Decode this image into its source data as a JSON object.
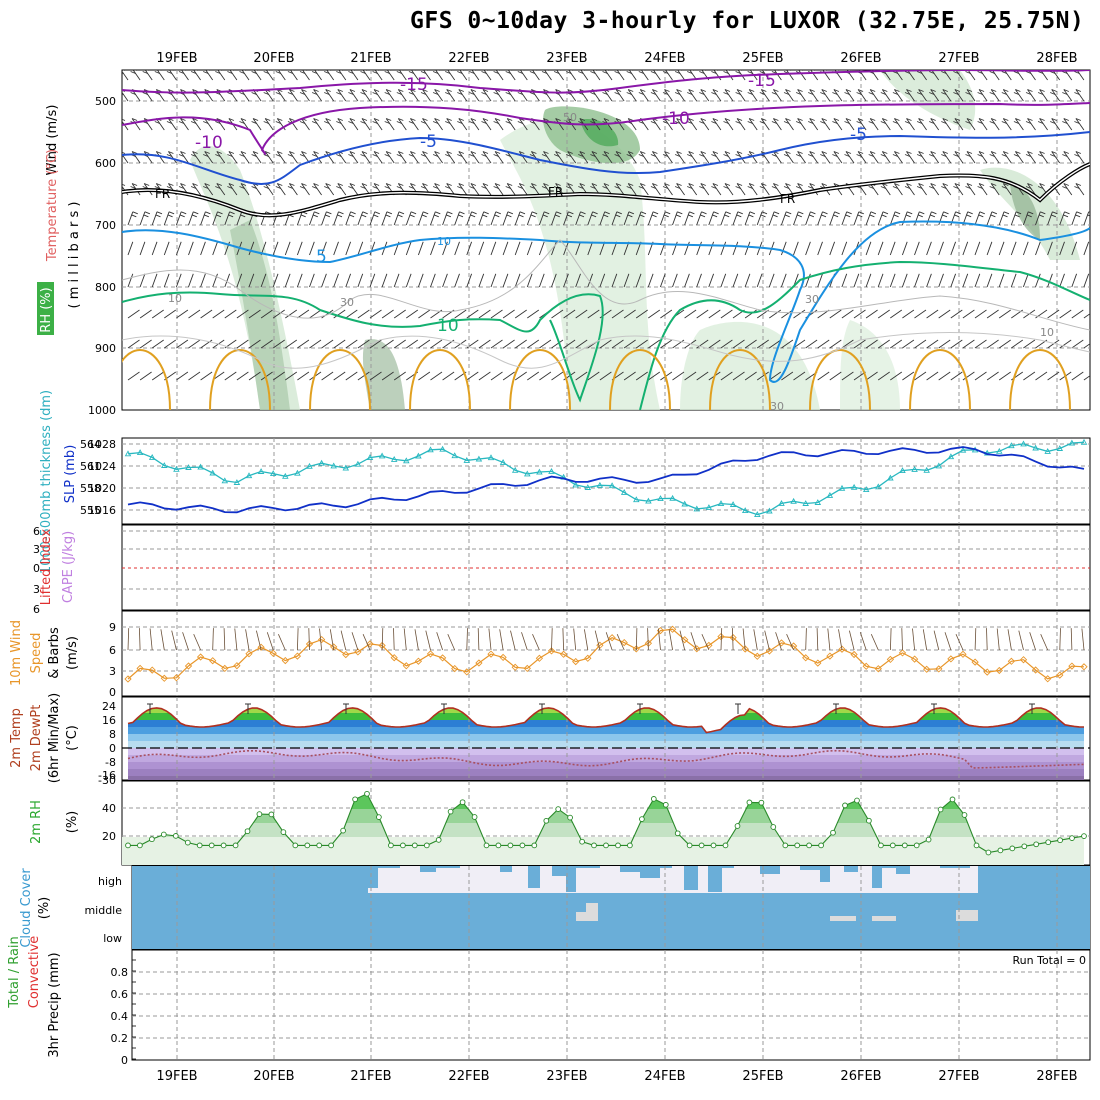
{
  "title": "GFS 0~10day 3-hourly for LUXOR (32.75E, 25.75N)",
  "dates": [
    "19FEB",
    "20FEB",
    "21FEB",
    "22FEB",
    "23FEB",
    "24FEB",
    "25FEB",
    "26FEB",
    "27FEB",
    "28FEB"
  ],
  "colors": {
    "purple": "#8a17a8",
    "blue": "#2050d0",
    "lightblue": "#1a90e0",
    "green": "#14b070",
    "orange": "#e0a020",
    "cyan": "#28b8c0",
    "slp": "#1030c8",
    "windorange": "#e8962a",
    "rhgreen": "#3cc040",
    "cloud": "#6aaed8",
    "red": "#e03030"
  },
  "panels": {
    "upper_air": {
      "ylabel_wind": "Wind (m/s)",
      "ylabel_temp": "Temperature (°C)",
      "ylabel_mb": "( m i l l i b a r s )",
      "rh_label": "RH (%)",
      "y_ticks": [
        "500",
        "600",
        "700",
        "800",
        "900",
        "1000"
      ],
      "contour_labels": {
        "m15a": "-15",
        "m15b": "-15",
        "m10a": "-10",
        "m10b": "-10",
        "m5a": "-5",
        "m5b": "-5",
        "fra": "FR",
        "frb": "FR",
        "frc": "FR",
        "p5": "5",
        "p10": "10",
        "p10b": "10",
        "rh50": "50",
        "rh30a": "30",
        "rh30b": "30",
        "rh10": "10",
        "rh10b": "10",
        "rh30c": "30"
      }
    },
    "thickness": {
      "label_thick": "1000-500mb thickness (dm)",
      "label_slp": "SLP (mb)",
      "left_ticks": [
        "564",
        "561",
        "558",
        "555"
      ],
      "right_ticks": [
        "1028",
        "1024",
        "1020",
        "1016"
      ]
    },
    "stability": {
      "label_li": "Lifted Index",
      "label_cape": "CAPE (J/kg)",
      "ticks": [
        "6",
        "3",
        "0",
        "3",
        "6"
      ]
    },
    "wind10m": {
      "label_a": "10m Wind",
      "label_b": "Speed",
      "label_c": "(m/s)",
      "label_d": "& Barbs",
      "ticks": [
        "9",
        "6",
        "3",
        "0"
      ]
    },
    "temp2m": {
      "label_a": "2m Temp",
      "label_b": "2m DewPt",
      "label_c": "(6hr Min/Max)",
      "label_d": "(°C)",
      "ticks": [
        "24",
        "16",
        "8",
        "0",
        "-8",
        "-16",
        "-30"
      ]
    },
    "rh2m": {
      "label": "2m RH",
      "unit": "(%)",
      "ticks": [
        "40",
        "20"
      ]
    },
    "cloud": {
      "label": "Cloud Cover",
      "unit": "(%)",
      "levels": [
        "high",
        "middle",
        "low"
      ]
    },
    "precip": {
      "label_a": "Total / Rain",
      "label_b": "Convective",
      "label_c": "3hr Precip (mm)",
      "run_total": "Run Total = 0",
      "ticks": [
        "0.8",
        "0.6",
        "0.4",
        "0.2",
        "0"
      ]
    }
  },
  "chart_data": [
    {
      "type": "line",
      "name": "1000-500mb thickness (dm) and SLP (mb)",
      "x": [
        "19FEB",
        "20FEB",
        "21FEB",
        "22FEB",
        "23FEB",
        "24FEB",
        "25FEB",
        "26FEB",
        "27FEB",
        "28FEB"
      ],
      "series": [
        {
          "name": "thickness",
          "axis": "left",
          "values": [
            562.8,
            559.2,
            561.3,
            563.1,
            559.7,
            556.2,
            554.8,
            558.4,
            563.4,
            563.9
          ]
        },
        {
          "name": "SLP",
          "axis": "right",
          "values": [
            1016.4,
            1015.4,
            1016.3,
            1018.5,
            1020.8,
            1020.6,
            1025.0,
            1025.6,
            1026.0,
            1022.2
          ]
        }
      ],
      "ylim_left": [
        553,
        565
      ],
      "ylim_right": [
        1013,
        1028
      ]
    },
    {
      "type": "line",
      "name": "10m Wind Speed (m/s)",
      "x": [
        "19FEB",
        "20FEB",
        "21FEB",
        "22FEB",
        "23FEB",
        "24FEB",
        "25FEB",
        "26FEB",
        "27FEB",
        "28FEB"
      ],
      "series": [
        {
          "name": "speed",
          "values": [
            1.8,
            4.5,
            6.5,
            3.8,
            4.5,
            7.8,
            6.0,
            4.3,
            4.0,
            2.5
          ]
        }
      ],
      "ylim": [
        0,
        10
      ]
    },
    {
      "type": "area",
      "name": "2m Temp / 2m DewPt (°C)",
      "x": [
        "19FEB",
        "20FEB",
        "21FEB",
        "22FEB",
        "23FEB",
        "24FEB",
        "25FEB",
        "26FEB",
        "27FEB",
        "28FEB"
      ],
      "series": [
        {
          "name": "2m Temp",
          "values": [
            14,
            20,
            12,
            19,
            13,
            20,
            11,
            14,
            20,
            15
          ]
        },
        {
          "name": "2m DewPt",
          "values": [
            -7,
            -3,
            0,
            -5,
            -2,
            -4,
            -4,
            -3,
            -1,
            -10
          ]
        }
      ],
      "ylim": [
        -30,
        28
      ]
    },
    {
      "type": "area",
      "name": "2m RH (%)",
      "x": [
        "19FEB",
        "20FEB",
        "21FEB",
        "22FEB",
        "23FEB",
        "24FEB",
        "25FEB",
        "26FEB",
        "27FEB",
        "28FEB"
      ],
      "series": [
        {
          "name": "2m RH",
          "values": [
            24,
            38,
            42,
            38,
            30,
            48,
            35,
            47,
            32,
            15
          ]
        }
      ],
      "ylim": [
        0,
        60
      ]
    },
    {
      "type": "bar",
      "name": "3hr Precip (mm)",
      "x": [
        "19FEB",
        "20FEB",
        "21FEB",
        "22FEB",
        "23FEB",
        "24FEB",
        "25FEB",
        "26FEB",
        "27FEB",
        "28FEB"
      ],
      "series": [
        {
          "name": "Total / Rain",
          "values": [
            0,
            0,
            0,
            0,
            0,
            0,
            0,
            0,
            0,
            0
          ]
        },
        {
          "name": "Convective",
          "values": [
            0,
            0,
            0,
            0,
            0,
            0,
            0,
            0,
            0,
            0
          ]
        }
      ],
      "ylim": [
        0,
        0.9
      ]
    }
  ]
}
